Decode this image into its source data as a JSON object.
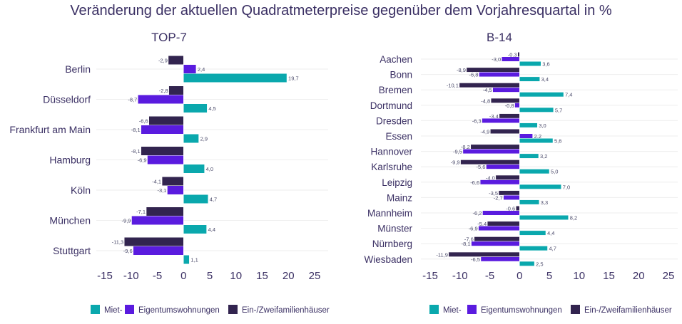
{
  "title": "Veränderung der aktuellen Quadratmeterpreise gegenüber dem Vorjahresquartal in %",
  "colors": {
    "miet": "#0aa8ad",
    "eigentum": "#5a1bdf",
    "haus": "#32244f",
    "text": "#3a2f63"
  },
  "chart_data": [
    {
      "type": "bar",
      "orientation": "horizontal",
      "title": "TOP-7",
      "categories": [
        "Berlin",
        "Düsseldorf",
        "Frankfurt am Main",
        "Hamburg",
        "Köln",
        "München",
        "Stuttgart"
      ],
      "xlim": [
        -15,
        25
      ],
      "xticks": [
        "-15",
        "-10",
        "-5",
        "0",
        "5",
        "10",
        "15",
        "20",
        "25"
      ],
      "xtick_values": [
        -15,
        -10,
        -5,
        0,
        5,
        10,
        15,
        20,
        25
      ],
      "legend": [
        "Miet-",
        "Eigentumswohnungen",
        "Ein-/Zweifamilienhäuser"
      ],
      "legend_position": "bottom",
      "series": [
        {
          "name": "Ein-/Zweifamilienhäuser",
          "key": "haus",
          "values": [
            -2.9,
            -2.8,
            -6.6,
            -8.1,
            -4.1,
            -7.1,
            -11.3
          ],
          "labels": [
            "-2,9",
            "-2,8",
            "-6,6",
            "-8,1",
            "-4,1",
            "-7,1",
            "-11,3"
          ]
        },
        {
          "name": "Eigentumswohnungen",
          "key": "eigentum",
          "values": [
            2.4,
            -8.7,
            -8.1,
            -6.9,
            -3.1,
            -9.9,
            -9.6
          ],
          "labels": [
            "2,4",
            "-8,7",
            "-8,1",
            "-6,9",
            "-3,1",
            "-9,9",
            "-9,6"
          ]
        },
        {
          "name": "Miet-",
          "key": "miet",
          "values": [
            19.7,
            4.5,
            2.9,
            4.0,
            4.7,
            4.4,
            1.1
          ],
          "labels": [
            "19,7",
            "4,5",
            "2,9",
            "4,0",
            "4,7",
            "4,4",
            "1,1"
          ]
        }
      ]
    },
    {
      "type": "bar",
      "orientation": "horizontal",
      "title": "B-14",
      "categories": [
        "Aachen",
        "Bonn",
        "Bremen",
        "Dortmund",
        "Dresden",
        "Essen",
        "Hannover",
        "Karlsruhe",
        "Leipzig",
        "Mainz",
        "Mannheim",
        "Münster",
        "Nürnberg",
        "Wiesbaden"
      ],
      "xlim": [
        -15,
        25
      ],
      "xticks": [
        "-15",
        "-10",
        "-5",
        "0",
        "5",
        "10",
        "15",
        "20",
        "25"
      ],
      "xtick_values": [
        -15,
        -10,
        -5,
        0,
        5,
        10,
        15,
        20,
        25
      ],
      "legend": [
        "Miet-",
        "Eigentumswohnungen",
        "Ein-/Zweifamilienhäuser"
      ],
      "legend_position": "bottom",
      "series": [
        {
          "name": "Ein-/Zweifamilienhäuser",
          "key": "haus",
          "values": [
            -0.3,
            -8.9,
            -10.1,
            -4.8,
            -3.4,
            -4.9,
            -8.2,
            -9.9,
            -4.0,
            -3.5,
            -0.6,
            -5.4,
            -7.6,
            -11.9
          ],
          "labels": [
            "-0,3",
            "-8,9",
            "-10,1",
            "-4,8",
            "-3,4",
            "-4,9",
            "-8,2",
            "-9,9",
            "-4,0",
            "-3,5",
            "-0,6",
            "-5,4",
            "-7,6",
            "-11,9"
          ]
        },
        {
          "name": "Eigentumswohnungen",
          "key": "eigentum",
          "values": [
            -3.0,
            -6.8,
            -4.5,
            -0.8,
            -6.3,
            2.2,
            -9.5,
            -5.6,
            -6.6,
            -2.7,
            -6.2,
            -6.9,
            -8.1,
            -6.5
          ],
          "labels": [
            "-3,0",
            "-6,8",
            "-4,5",
            "-0,8",
            "-6,3",
            "2,2",
            "-9,5",
            "-5,6",
            "-6,6",
            "-2,7",
            "-6,2",
            "-6,9",
            "-8,1",
            "-6,5"
          ]
        },
        {
          "name": "Miet-",
          "key": "miet",
          "values": [
            3.6,
            3.4,
            7.4,
            5.7,
            3.0,
            5.6,
            3.2,
            5.0,
            7.0,
            3.3,
            8.2,
            4.4,
            4.7,
            2.5
          ],
          "labels": [
            "3,6",
            "3,4",
            "7,4",
            "5,7",
            "3,0",
            "5,6",
            "3,2",
            "5,0",
            "7,0",
            "3,3",
            "8,2",
            "4,4",
            "4,7",
            "2,5"
          ]
        }
      ]
    }
  ]
}
